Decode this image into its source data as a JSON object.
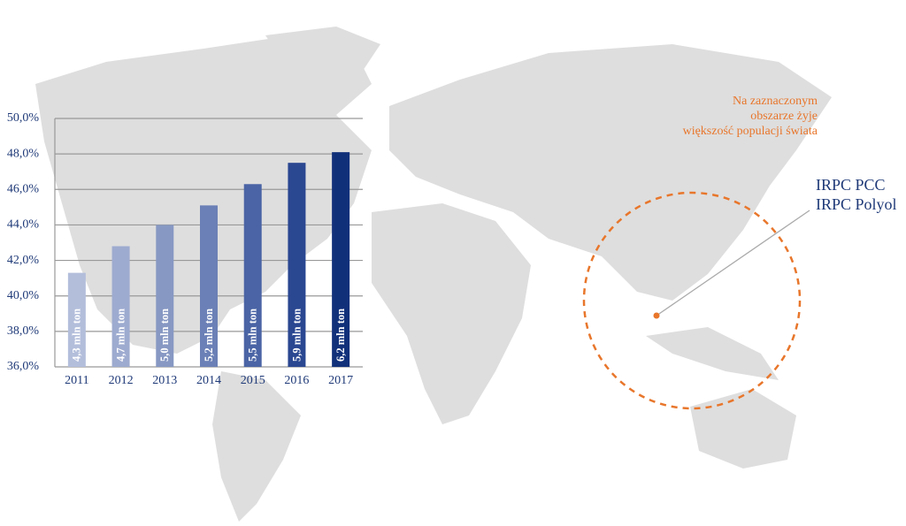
{
  "chart_data": {
    "type": "bar",
    "categories": [
      "2011",
      "2012",
      "2013",
      "2014",
      "2015",
      "2016",
      "2017"
    ],
    "values": [
      41.3,
      42.8,
      44.0,
      45.1,
      46.3,
      47.5,
      48.1
    ],
    "bar_labels": [
      "4,3 mln ton",
      "4,7 mln ton",
      "5,0 mln ton",
      "5,2 mln ton",
      "5,5 mln ton",
      "5,9 mln ton",
      "6,2 mln ton"
    ],
    "colors": [
      "#b3bedb",
      "#9eabd0",
      "#8798c3",
      "#6b80b6",
      "#4a64a5",
      "#2a4791",
      "#11307a"
    ],
    "ylim": [
      36,
      50
    ],
    "yticks": [
      {
        "value": 36,
        "label": "36,0%"
      },
      {
        "value": 38,
        "label": "38,0%"
      },
      {
        "value": 40,
        "label": "40,0%"
      },
      {
        "value": 42,
        "label": "42,0%"
      },
      {
        "value": 44,
        "label": "44,0%"
      },
      {
        "value": 46,
        "label": "46,0%"
      },
      {
        "value": 48,
        "label": "48,0%"
      },
      {
        "value": 50,
        "label": "50,0%"
      }
    ],
    "grid": true
  },
  "annotation": {
    "lines": [
      "Na zaznaczonym",
      "obszarze żyje",
      "większość populacji świata"
    ]
  },
  "plants": [
    "IRPC PCC",
    "IRPC Polyol"
  ]
}
